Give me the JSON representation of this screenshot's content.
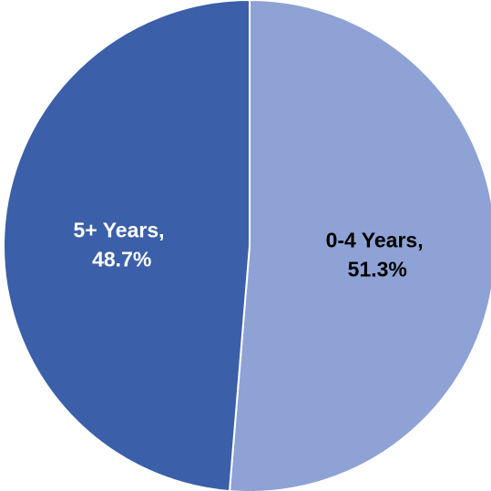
{
  "chart_data": {
    "type": "pie",
    "title": "",
    "slices": [
      {
        "label_line1": "0-4 Years,",
        "label_line2": "51.3%",
        "category": "0-4 Years",
        "value": 51.3,
        "color": "#8EA2D5",
        "text_color": "#000000"
      },
      {
        "label_line1": "5+ Years,",
        "label_line2": "48.7%",
        "category": "5+ Years",
        "value": 48.7,
        "color": "#3B5FA8",
        "text_color": "#FFFFFF"
      }
    ],
    "start_angle_deg": 0,
    "direction": "clockwise",
    "legend": "none"
  }
}
